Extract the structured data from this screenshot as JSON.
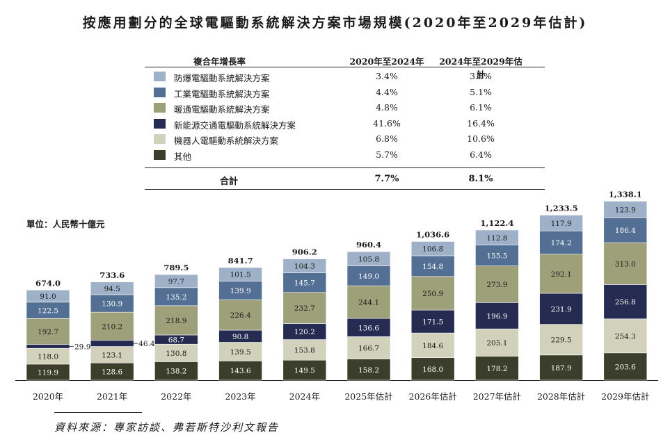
{
  "title": "按應用劃分的全球電驅動系統解決方案市場規模(2020年至2029年估計)",
  "table": {
    "header_label": "複合年增長率",
    "col1": "2020年至2024年",
    "col2": "2024年至2029年估計",
    "rows": [
      {
        "name": "防爆電驅動系統解決方案",
        "c1": "3.4%",
        "c2": "3.5%",
        "color": "#9fb1c8"
      },
      {
        "name": "工業電驅動系統解決方案",
        "c1": "4.4%",
        "c2": "5.1%",
        "color": "#536f93"
      },
      {
        "name": "暖通電驅動系統解決方案",
        "c1": "4.8%",
        "c2": "6.1%",
        "color": "#9ea07a"
      },
      {
        "name": "新能源交通電驅動系統解決方案",
        "c1": "41.6%",
        "c2": "16.4%",
        "color": "#262c51"
      },
      {
        "name": "機器人電驅動系統解決方案",
        "c1": "6.8%",
        "c2": "10.6%",
        "color": "#d2d1bb"
      },
      {
        "name": "其他",
        "c1": "5.7%",
        "c2": "6.4%",
        "color": "#3b3e2b"
      }
    ],
    "total_label": "合計",
    "total_c1": "7.7%",
    "total_c2": "8.1%"
  },
  "unit_label": "單位：人民幣十億元",
  "source": "資料來源：專家訪談、弗若斯特沙利文報告",
  "chart_data": {
    "type": "bar",
    "stacked": true,
    "categories": [
      "2020年",
      "2021年",
      "2022年",
      "2023年",
      "2024年",
      "2025年估計",
      "2026年估計",
      "2027年估計",
      "2028年估計",
      "2029年估計"
    ],
    "series": [
      {
        "name": "其他",
        "color": "#3b3e2b",
        "label_color": "#ffffff",
        "values": [
          119.9,
          128.6,
          138.2,
          143.6,
          149.5,
          158.2,
          168.0,
          178.2,
          187.9,
          203.6
        ]
      },
      {
        "name": "機器人電驅動系統解決方案",
        "color": "#d2d1bb",
        "label_color": "#1a1a1a",
        "values": [
          118.0,
          123.1,
          130.8,
          139.5,
          153.8,
          166.7,
          184.6,
          205.1,
          229.5,
          254.3
        ]
      },
      {
        "name": "新能源交通電驅動系統解決方案",
        "color": "#262c51",
        "label_color": "#ffffff",
        "values": [
          29.9,
          46.4,
          68.7,
          90.8,
          120.2,
          136.6,
          171.5,
          196.9,
          231.9,
          256.8
        ]
      },
      {
        "name": "暖通電驅動系統解決方案",
        "color": "#9ea07a",
        "label_color": "#1a1a1a",
        "values": [
          192.7,
          210.2,
          218.9,
          226.4,
          232.7,
          244.1,
          250.9,
          273.9,
          292.1,
          313.0
        ]
      },
      {
        "name": "工業電驅動系統解決方案",
        "color": "#536f93",
        "label_color": "#ffffff",
        "values": [
          122.5,
          130.9,
          135.2,
          139.9,
          145.7,
          149.0,
          154.8,
          155.5,
          174.2,
          186.4
        ]
      },
      {
        "name": "防爆電驅動系統解決方案",
        "color": "#9fb1c8",
        "label_color": "#1a1a1a",
        "values": [
          91.0,
          94.5,
          97.7,
          101.5,
          104.3,
          105.8,
          106.8,
          112.8,
          117.9,
          123.9
        ]
      }
    ],
    "value_labels": [
      [
        "119.9",
        "128.6",
        "138.2",
        "143.6",
        "149.5",
        "158.2",
        "168.0",
        "178.2",
        "187.9",
        "203.6"
      ],
      [
        "118.0",
        "123.1",
        "130.8",
        "139.5",
        "153.8",
        "166.7",
        "184.6",
        "205.1",
        "229.5",
        "254.3"
      ],
      [
        "29.9",
        "46.4",
        "68.7",
        "90.8",
        "120.2",
        "136.6",
        "171.5",
        "196.9",
        "231.9",
        "256.8"
      ],
      [
        "192.7",
        "210.2",
        "218.9",
        "226.4",
        "232.7",
        "244.1",
        "250.9",
        "273.9",
        "292.1",
        "313.0"
      ],
      [
        "122.5",
        "130.9",
        "135.2",
        "139.9",
        "145.7",
        "149.0",
        "154.8",
        "155.5",
        "174.2",
        "186.4"
      ],
      [
        "91.0",
        "94.5",
        "97.7",
        "101.5",
        "104.3",
        "105.8",
        "106.8",
        "112.8",
        "117.9",
        "123.9"
      ]
    ],
    "totals": [
      674.0,
      733.6,
      789.5,
      841.7,
      906.2,
      960.4,
      1036.6,
      1122.4,
      1233.5,
      1338.1
    ],
    "total_labels": [
      "674.0",
      "733.6",
      "789.5",
      "841.7",
      "906.2",
      "960.4",
      "1,036.6",
      "1,122.4",
      "1,233.5",
      "1,338.1"
    ],
    "outside_label_first_n_years": 2,
    "ylabel": "單位：人民幣十億元"
  }
}
